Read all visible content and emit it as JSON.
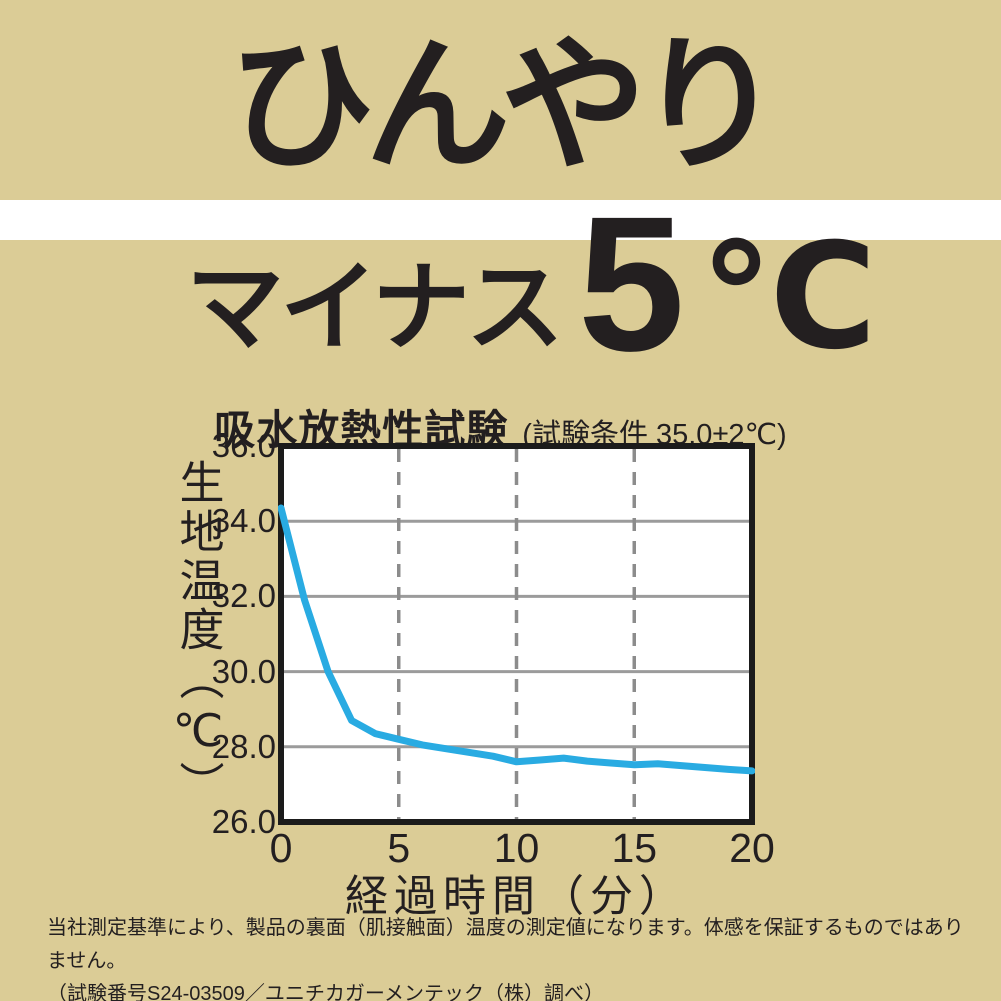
{
  "colors": {
    "background": "#dbcc96",
    "text": "#231f20",
    "band": "#ffffff",
    "plot_background": "#ffffff",
    "plot_border": "#1b1b1b",
    "grid_solid": "#9b9b9b",
    "grid_dashed": "#8c8c8c",
    "line": "#29abe2"
  },
  "hero": {
    "headline": "ひんやり",
    "prefix": "マイナス",
    "value": "5",
    "unit": "℃"
  },
  "chart": {
    "title": "吸水放熱性試験",
    "subtitle": "(試験条件 35.0±2℃)"
  },
  "chart_data": {
    "type": "line",
    "title": "吸水放熱性試験",
    "subtitle": "(試験条件 35.0±2℃)",
    "xlabel": "経過時間（分）",
    "ylabel": "生地温度（℃）",
    "xlim": [
      0,
      20
    ],
    "ylim": [
      26.0,
      36.0
    ],
    "xticks": [
      0,
      5,
      10,
      15,
      20
    ],
    "xtick_labels": [
      "0",
      "5",
      "10",
      "15",
      "20"
    ],
    "yticks": [
      36.0,
      34.0,
      32.0,
      30.0,
      28.0,
      26.0
    ],
    "ytick_labels": [
      "36.0",
      "34.0",
      "32.0",
      "30.0",
      "28.0",
      "26.0"
    ],
    "grid": "horizontal solid, vertical dashed",
    "legend": "none",
    "line_color": "#29abe2",
    "x": [
      0,
      1,
      2,
      3,
      4,
      5,
      6,
      7,
      8,
      9,
      10,
      11,
      12,
      13,
      14,
      15,
      16,
      17,
      18,
      19,
      20
    ],
    "series": [
      {
        "name": "生地温度",
        "values": [
          34.35,
          31.9,
          30.0,
          28.7,
          28.35,
          28.2,
          28.05,
          27.95,
          27.85,
          27.75,
          27.6,
          27.65,
          27.7,
          27.62,
          27.57,
          27.52,
          27.55,
          27.5,
          27.45,
          27.4,
          27.36
        ]
      }
    ]
  },
  "footer": {
    "line1": "当社測定基準により、製品の裏面（肌接触面）温度の測定値になります。体感を保証するものではありません。",
    "line2": "（試験番号S24-03509／ユニチカガーメンテック（株）調べ）"
  }
}
